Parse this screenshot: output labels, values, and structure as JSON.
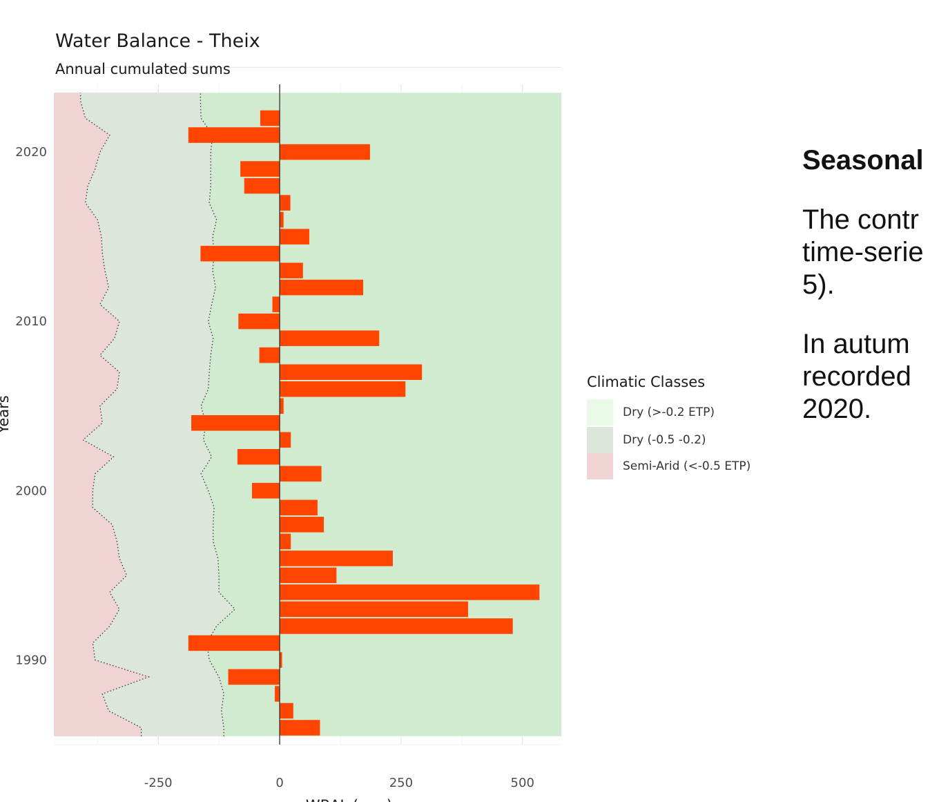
{
  "chart_data": {
    "type": "bar",
    "orientation": "horizontal",
    "title": "Water Balance - Theix",
    "subtitle": "Annual cumulated sums",
    "xlabel": "WBAL (mm)",
    "ylabel": "Years",
    "xlim": [
      -465,
      580
    ],
    "ylim": [
      1985,
      2024
    ],
    "x_ticks": [
      -250,
      0,
      250,
      500
    ],
    "y_ticks": [
      1990,
      2000,
      2010,
      2020
    ],
    "grid": true,
    "legend_position": "right",
    "bar_color": "#ff4500",
    "years": [
      1986,
      1987,
      1988,
      1989,
      1990,
      1991,
      1992,
      1993,
      1994,
      1995,
      1996,
      1997,
      1998,
      1999,
      2000,
      2001,
      2002,
      2003,
      2004,
      2005,
      2006,
      2007,
      2008,
      2009,
      2010,
      2011,
      2012,
      2013,
      2014,
      2015,
      2016,
      2017,
      2018,
      2019,
      2020,
      2021,
      2022,
      2023
    ],
    "values": [
      83,
      28,
      -10,
      -106,
      5,
      -188,
      480,
      388,
      535,
      117,
      233,
      23,
      91,
      78,
      -57,
      86,
      -87,
      23,
      -182,
      8,
      259,
      293,
      -42,
      205,
      -85,
      -15,
      172,
      48,
      -163,
      61,
      8,
      22,
      -73,
      -81,
      186,
      -188,
      -40,
      null
    ],
    "classes": [
      {
        "name": "Dry (>-0.2 ETP)",
        "color": "#d0ebcf"
      },
      {
        "name": "Dry (-0.5 -0.2)",
        "color": "#dce6da"
      },
      {
        "name": "Semi-Arid (<-0.5 ETP)",
        "color": "#f0d3d3"
      }
    ],
    "threshold_dry": [
      -115,
      -120,
      -115,
      -125,
      -145,
      -150,
      -130,
      -92,
      -125,
      -125,
      -127,
      -137,
      -137,
      -135,
      -147,
      -162,
      -140,
      -157,
      -152,
      -162,
      -147,
      -145,
      -142,
      -137,
      -147,
      -140,
      -132,
      -138,
      -135,
      -138,
      -130,
      -145,
      -142,
      -142,
      -142,
      -138,
      -162,
      -163
    ],
    "threshold_semi": [
      -285,
      -352,
      -365,
      -270,
      -380,
      -385,
      -350,
      -330,
      -350,
      -315,
      -330,
      -335,
      -345,
      -385,
      -385,
      -380,
      -342,
      -405,
      -365,
      -370,
      -335,
      -330,
      -370,
      -340,
      -330,
      -370,
      -352,
      -360,
      -365,
      -367,
      -375,
      -400,
      -395,
      -380,
      -370,
      -350,
      -400,
      -410
    ]
  },
  "legend": {
    "title": "Climatic Classes",
    "items": [
      {
        "label": "Dry (>-0.2 ETP)",
        "color": "#e9fbe6"
      },
      {
        "label": "Dry (-0.5 -0.2)",
        "color": "#dde6da"
      },
      {
        "label": "Semi-Arid (<-0.5 ETP)",
        "color": "#f0d3d3"
      }
    ]
  },
  "side_text": {
    "heading": "Seasonal",
    "paragraphs": [
      [
        "The contr",
        "time-serie",
        "5)."
      ],
      [
        "In autum",
        "recorded",
        "2020."
      ]
    ]
  }
}
